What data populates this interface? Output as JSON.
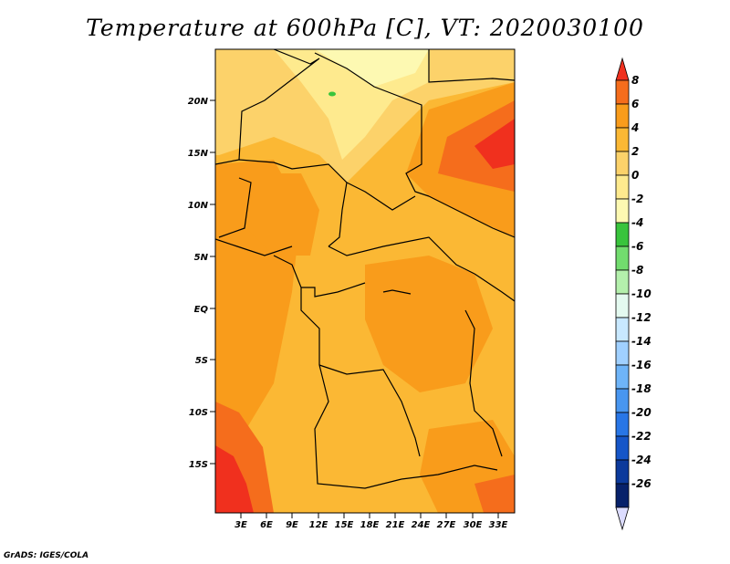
{
  "title": "Temperature at 600hPa [C], VT: 2020030100",
  "credit": "GrADS: IGES/COLA",
  "map": {
    "lat_labels": [
      "20N",
      "15N",
      "10N",
      "5N",
      "EQ",
      "5S",
      "10S",
      "15S"
    ],
    "lon_labels": [
      "3E",
      "6E",
      "9E",
      "12E",
      "15E",
      "18E",
      "21E",
      "24E",
      "27E",
      "30E",
      "33E"
    ]
  },
  "colorbar": {
    "labels": [
      "8",
      "6",
      "4",
      "2",
      "0",
      "-2",
      "-4",
      "-6",
      "-8",
      "-10",
      "-12",
      "-14",
      "-16",
      "-18",
      "-20",
      "-22",
      "-24",
      "-26"
    ],
    "colors": [
      "#f0301e",
      "#f56d1c",
      "#f99c1b",
      "#fbb834",
      "#fcd26a",
      "#feea8e",
      "#fdf9b2",
      "#39c43c",
      "#72dc6e",
      "#b4f0ac",
      "#e4faf0",
      "#c8e8ff",
      "#a0d0ff",
      "#6eb4f8",
      "#4896f0",
      "#2876e6",
      "#1656c8",
      "#0c3a9c",
      "#07216a"
    ],
    "under_color": "#dcdcff"
  }
}
